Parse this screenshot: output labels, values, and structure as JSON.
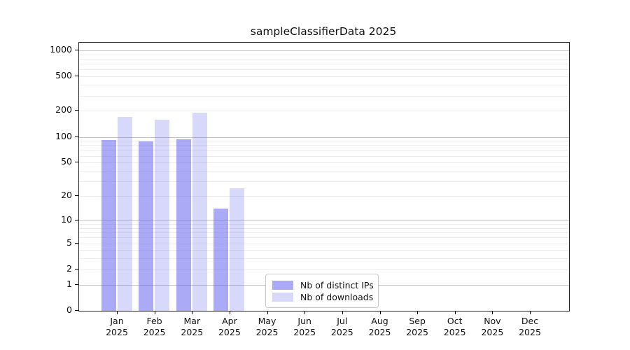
{
  "chart_data": {
    "type": "bar",
    "title": "sampleClassifierData 2025",
    "months": [
      "Jan",
      "Feb",
      "Mar",
      "Apr",
      "May",
      "Jun",
      "Jul",
      "Aug",
      "Sep",
      "Oct",
      "Nov",
      "Dec"
    ],
    "year_label": "2025",
    "series": [
      {
        "name": "Nb of distinct IPs",
        "color": "#5c5cee",
        "alpha": 0.52,
        "values": [
          92,
          88,
          94,
          14,
          0,
          0,
          0,
          0,
          0,
          0,
          0,
          0
        ]
      },
      {
        "name": "Nb of downloads",
        "color": "#5c5cee",
        "alpha": 0.24,
        "values": [
          170,
          157,
          189,
          25,
          0,
          0,
          0,
          0,
          0,
          0,
          0,
          0
        ]
      }
    ],
    "y_ticks": [
      0,
      1,
      2,
      5,
      10,
      20,
      50,
      100,
      200,
      500,
      1000
    ],
    "y_minor_gridlines": [
      2,
      3,
      4,
      5,
      6,
      7,
      8,
      9,
      20,
      30,
      40,
      50,
      60,
      70,
      80,
      90,
      200,
      300,
      400,
      500,
      600,
      700,
      800,
      900
    ],
    "y_major_gridlines": [
      1,
      10,
      100,
      1000
    ],
    "y_scale": "log10(value+1)",
    "ylim": [
      0,
      1240
    ],
    "xlabel": "",
    "ylabel": "",
    "grid": {
      "major_color": "#c4c4c4",
      "minor_color": "#ededed"
    },
    "legend_position": "inside-bottom-center"
  },
  "colors": {
    "background": "#ffffff",
    "spine": "#262626",
    "text": "#111111",
    "tick": "#000000",
    "legend_border": "#c9c9c9"
  }
}
